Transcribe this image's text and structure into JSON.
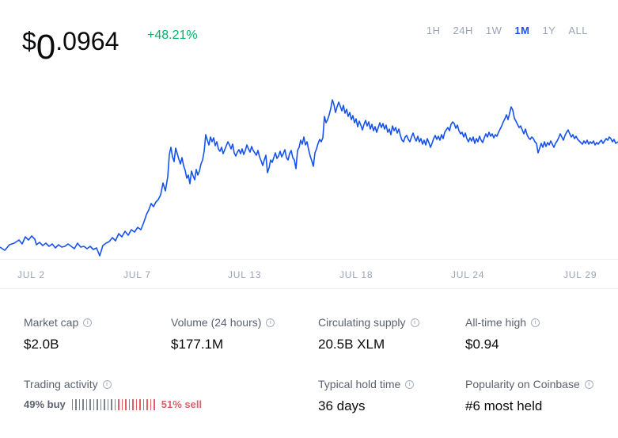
{
  "price": {
    "dollar": "$",
    "int": "0",
    "dec": ".0964"
  },
  "change": "+48.21%",
  "ranges": [
    {
      "label": "1H",
      "active": false
    },
    {
      "label": "24H",
      "active": false
    },
    {
      "label": "1W",
      "active": false
    },
    {
      "label": "1M",
      "active": true
    },
    {
      "label": "1Y",
      "active": false
    },
    {
      "label": "ALL",
      "active": false
    }
  ],
  "x_labels": [
    "JUL 2",
    "JUL 7",
    "JUL 13",
    "JUL 18",
    "JUL 24",
    "JUL 29"
  ],
  "colors": {
    "line": "#1652f0",
    "positive": "#05b169",
    "buy": "#7d8491",
    "sell": "#df5f67"
  },
  "stats": {
    "market_cap": {
      "label": "Market cap",
      "value": "$2.0B"
    },
    "volume": {
      "label": "Volume (24 hours)",
      "value": "$177.1M"
    },
    "supply": {
      "label": "Circulating supply",
      "value": "20.5B XLM"
    },
    "ath": {
      "label": "All-time high",
      "value": "$0.94"
    },
    "trading": {
      "label": "Trading activity",
      "buy": "49% buy",
      "sell": "51% sell",
      "buy_pct": 49
    },
    "hold": {
      "label": "Typical hold time",
      "value": "36 days"
    },
    "popularity": {
      "label": "Popularity on Coinbase",
      "value": "#6 most held"
    }
  }
}
